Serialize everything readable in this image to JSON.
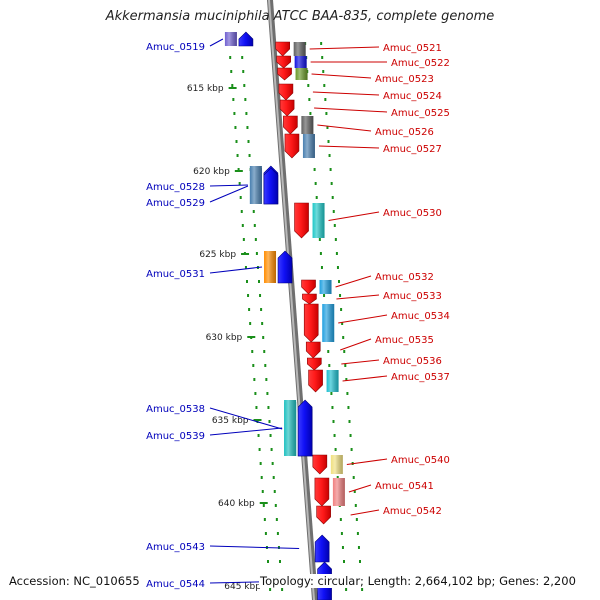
{
  "title": "Akkermansia muciniphila ATCC BAA-835, complete genome",
  "footer": {
    "accession": "Accession: NC_010655",
    "topology": "Topology: circular; Length: 2,664,102 bp; Genes: 2,200"
  },
  "colors": {
    "backbone": "#8a8a8a",
    "forward_label": "#0000bb",
    "reverse_label": "#cc0000",
    "ticks": "#1a8f1a"
  },
  "scale": {
    "unit": "kbp",
    "ticks": [
      {
        "kbp": 615,
        "label": "615 kbp"
      },
      {
        "kbp": 620,
        "label": "620 kbp"
      },
      {
        "kbp": 625,
        "label": "625 kbp"
      },
      {
        "kbp": 630,
        "label": "630 kbp"
      },
      {
        "kbp": 635,
        "label": "635 kbp"
      },
      {
        "kbp": 640,
        "label": "640 kbp"
      },
      {
        "kbp": 645,
        "label": "645 kbp"
      }
    ]
  },
  "genes": [
    {
      "name": "Amuc_0519",
      "strand": "+",
      "color": "#7060d0"
    },
    {
      "name": "Amuc_0521",
      "strand": "-",
      "color": "#606060"
    },
    {
      "name": "Amuc_0522",
      "strand": "-",
      "color": "#1010e0"
    },
    {
      "name": "Amuc_0523",
      "strand": "-",
      "color": "#6a9a2a"
    },
    {
      "name": "Amuc_0524",
      "strand": "-",
      "color": "#ffffff"
    },
    {
      "name": "Amuc_0525",
      "strand": "-",
      "color": "#ffffff"
    },
    {
      "name": "Amuc_0526",
      "strand": "-",
      "color": "#606060"
    },
    {
      "name": "Amuc_0527",
      "strand": "-",
      "color": "#4a80b0"
    },
    {
      "name": "Amuc_0528",
      "strand": "+",
      "color": "#4a80b0"
    },
    {
      "name": "Amuc_0529",
      "strand": "+",
      "color": "#4a80b0"
    },
    {
      "name": "Amuc_0530",
      "strand": "-",
      "color": "#20c8c8"
    },
    {
      "name": "Amuc_0531",
      "strand": "+",
      "color": "#ff8c00"
    },
    {
      "name": "Amuc_0532",
      "strand": "-",
      "color": "#20a0e0"
    },
    {
      "name": "Amuc_0533",
      "strand": "-",
      "color": "#ffffff"
    },
    {
      "name": "Amuc_0534",
      "strand": "-",
      "color": "#20a0e0"
    },
    {
      "name": "Amuc_0535",
      "strand": "-",
      "color": "#ffffff"
    },
    {
      "name": "Amuc_0536",
      "strand": "-",
      "color": "#ffffff"
    },
    {
      "name": "Amuc_0537",
      "strand": "-",
      "color": "#20c0d0"
    },
    {
      "name": "Amuc_0538",
      "strand": "+",
      "color": "#20c0c0"
    },
    {
      "name": "Amuc_0539",
      "strand": "+",
      "color": "#20c0c0"
    },
    {
      "name": "Amuc_0540",
      "strand": "-",
      "color": "#f0e080"
    },
    {
      "name": "Amuc_0541",
      "strand": "-",
      "color": "#f08080"
    },
    {
      "name": "Amuc_0542",
      "strand": "-",
      "color": "#ffffff"
    },
    {
      "name": "Amuc_0543",
      "strand": "+",
      "color": "#ffffff"
    },
    {
      "name": "Amuc_0544",
      "strand": "+",
      "color": "#ffffff"
    }
  ]
}
